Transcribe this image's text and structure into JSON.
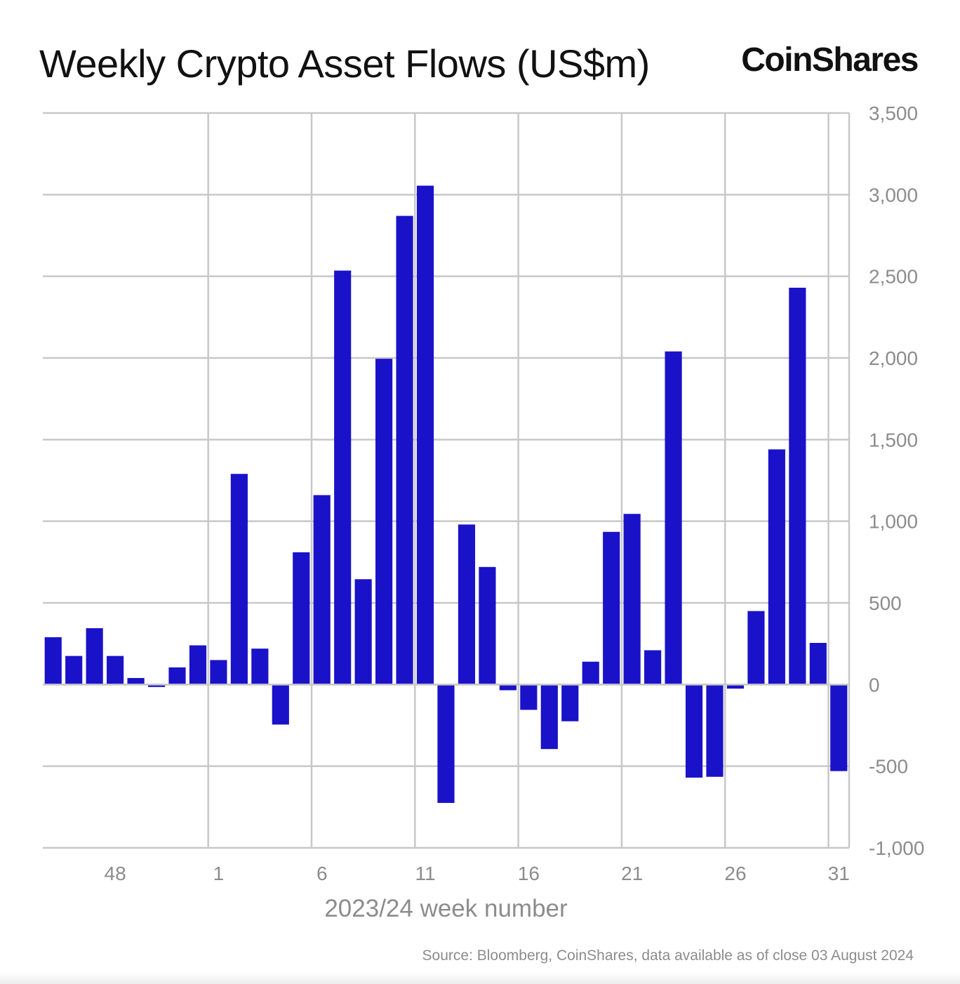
{
  "title": "Weekly Crypto Asset Flows (US$m)",
  "brand": "CoinShares",
  "source": "Source: Bloomberg, CoinShares, data available as of close 03 August 2024",
  "chart_data": {
    "type": "bar",
    "title": "Weekly Crypto Asset Flows (US$m)",
    "xlabel": "2023/24 week number",
    "ylabel": "",
    "ylim": [
      -1000,
      3500
    ],
    "yticks": [
      3500,
      3000,
      2500,
      2000,
      1500,
      1000,
      500,
      0,
      -500,
      -1000
    ],
    "ytick_labels": [
      "3,500",
      "3,000",
      "2,500",
      "2,000",
      "1,500",
      "1,000",
      "500",
      "0",
      "-500",
      "-1,000"
    ],
    "y_axis_position": "right",
    "grid": true,
    "bar_color": "#1a12c8",
    "categories": [
      "45",
      "46",
      "47",
      "48",
      "49",
      "50",
      "51",
      "52",
      "1",
      "2",
      "3",
      "4",
      "5",
      "6",
      "7",
      "8",
      "9",
      "10",
      "11",
      "12",
      "13",
      "14",
      "15",
      "16",
      "17",
      "18",
      "19",
      "20",
      "21",
      "22",
      "23",
      "24",
      "25",
      "26",
      "27",
      "28",
      "29",
      "30",
      "31"
    ],
    "values": [
      290,
      175,
      345,
      175,
      40,
      -15,
      105,
      240,
      150,
      1290,
      220,
      -245,
      810,
      1160,
      2535,
      645,
      1995,
      2870,
      3055,
      -725,
      980,
      720,
      -35,
      -155,
      -395,
      -225,
      140,
      935,
      1045,
      210,
      2040,
      -570,
      -565,
      -25,
      450,
      1440,
      2430,
      255,
      -530
    ],
    "xtick_labels": [
      "48",
      "1",
      "6",
      "11",
      "16",
      "21",
      "26",
      "31"
    ]
  }
}
